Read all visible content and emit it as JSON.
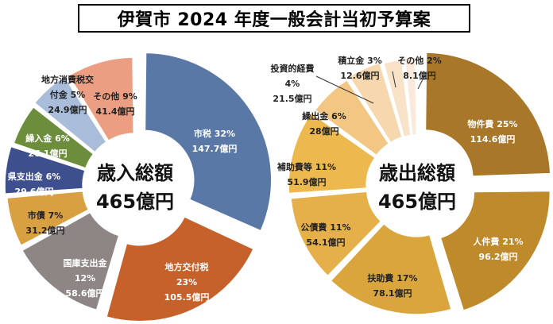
{
  "title": "伊賀市 2024 年度一般会計当初予算案",
  "chart_data": [
    {
      "type": "pie",
      "center_label": "歳入総額",
      "total_label": "465億円",
      "slices": [
        {
          "name": "市税",
          "percent_label": "32%",
          "amount_label": "147.7億円",
          "value": 147.7,
          "color": "#5a78a6"
        },
        {
          "name": "地方交付税",
          "percent_label": "23%",
          "amount_label": "105.5億円",
          "value": 105.5,
          "color": "#c6612c"
        },
        {
          "name": "国庫支出金",
          "percent_label": "12%",
          "amount_label": "58.6億円",
          "value": 58.6,
          "color": "#8e8684"
        },
        {
          "name": "市債",
          "percent_label": "7%",
          "amount_label": "31.2億円",
          "value": 31.2,
          "color": "#d9a042"
        },
        {
          "name": "県支出金",
          "percent_label": "6%",
          "amount_label": "29.6億円",
          "value": 29.6,
          "color": "#3e4f8e"
        },
        {
          "name": "繰入金",
          "percent_label": "6%",
          "amount_label": "26.1億円",
          "value": 26.1,
          "color": "#6c8e3c"
        },
        {
          "name": "地方消費税交付金",
          "percent_label": "5%",
          "amount_label": "24.9億円",
          "value": 24.9,
          "color": "#a9bcd9"
        },
        {
          "name": "その他",
          "percent_label": "9%",
          "amount_label": "41.4億円",
          "value": 41.4,
          "color": "#ec9e82"
        }
      ]
    },
    {
      "type": "pie",
      "center_label": "歳出総額",
      "total_label": "465億円",
      "slices": [
        {
          "name": "物件費",
          "percent_label": "25%",
          "amount_label": "114.6億円",
          "value": 114.6,
          "color": "#a9772a"
        },
        {
          "name": "人件費",
          "percent_label": "21%",
          "amount_label": "96.2億円",
          "value": 96.2,
          "color": "#be8a2c"
        },
        {
          "name": "扶助費",
          "percent_label": "17%",
          "amount_label": "78.1億円",
          "value": 78.1,
          "color": "#d9a53c"
        },
        {
          "name": "公債費",
          "percent_label": "11%",
          "amount_label": "54.1億円",
          "value": 54.1,
          "color": "#e5b04a"
        },
        {
          "name": "補助費等",
          "percent_label": "11%",
          "amount_label": "51.9億円",
          "value": 51.9,
          "color": "#edb94f"
        },
        {
          "name": "繰出金",
          "percent_label": "6%",
          "amount_label": "28億円",
          "value": 28,
          "color": "#f2c683"
        },
        {
          "name": "投資的経費",
          "percent_label": "4%",
          "amount_label": "21.5億円",
          "value": 21.5,
          "color": "#f6d7ae"
        },
        {
          "name": "積立金",
          "percent_label": "3%",
          "amount_label": "12.6億円",
          "value": 12.6,
          "color": "#f9e3c8"
        },
        {
          "name": "その他",
          "percent_label": "2%",
          "amount_label": "8.1億円",
          "value": 8.1,
          "color": "#fbeadb"
        }
      ]
    }
  ]
}
